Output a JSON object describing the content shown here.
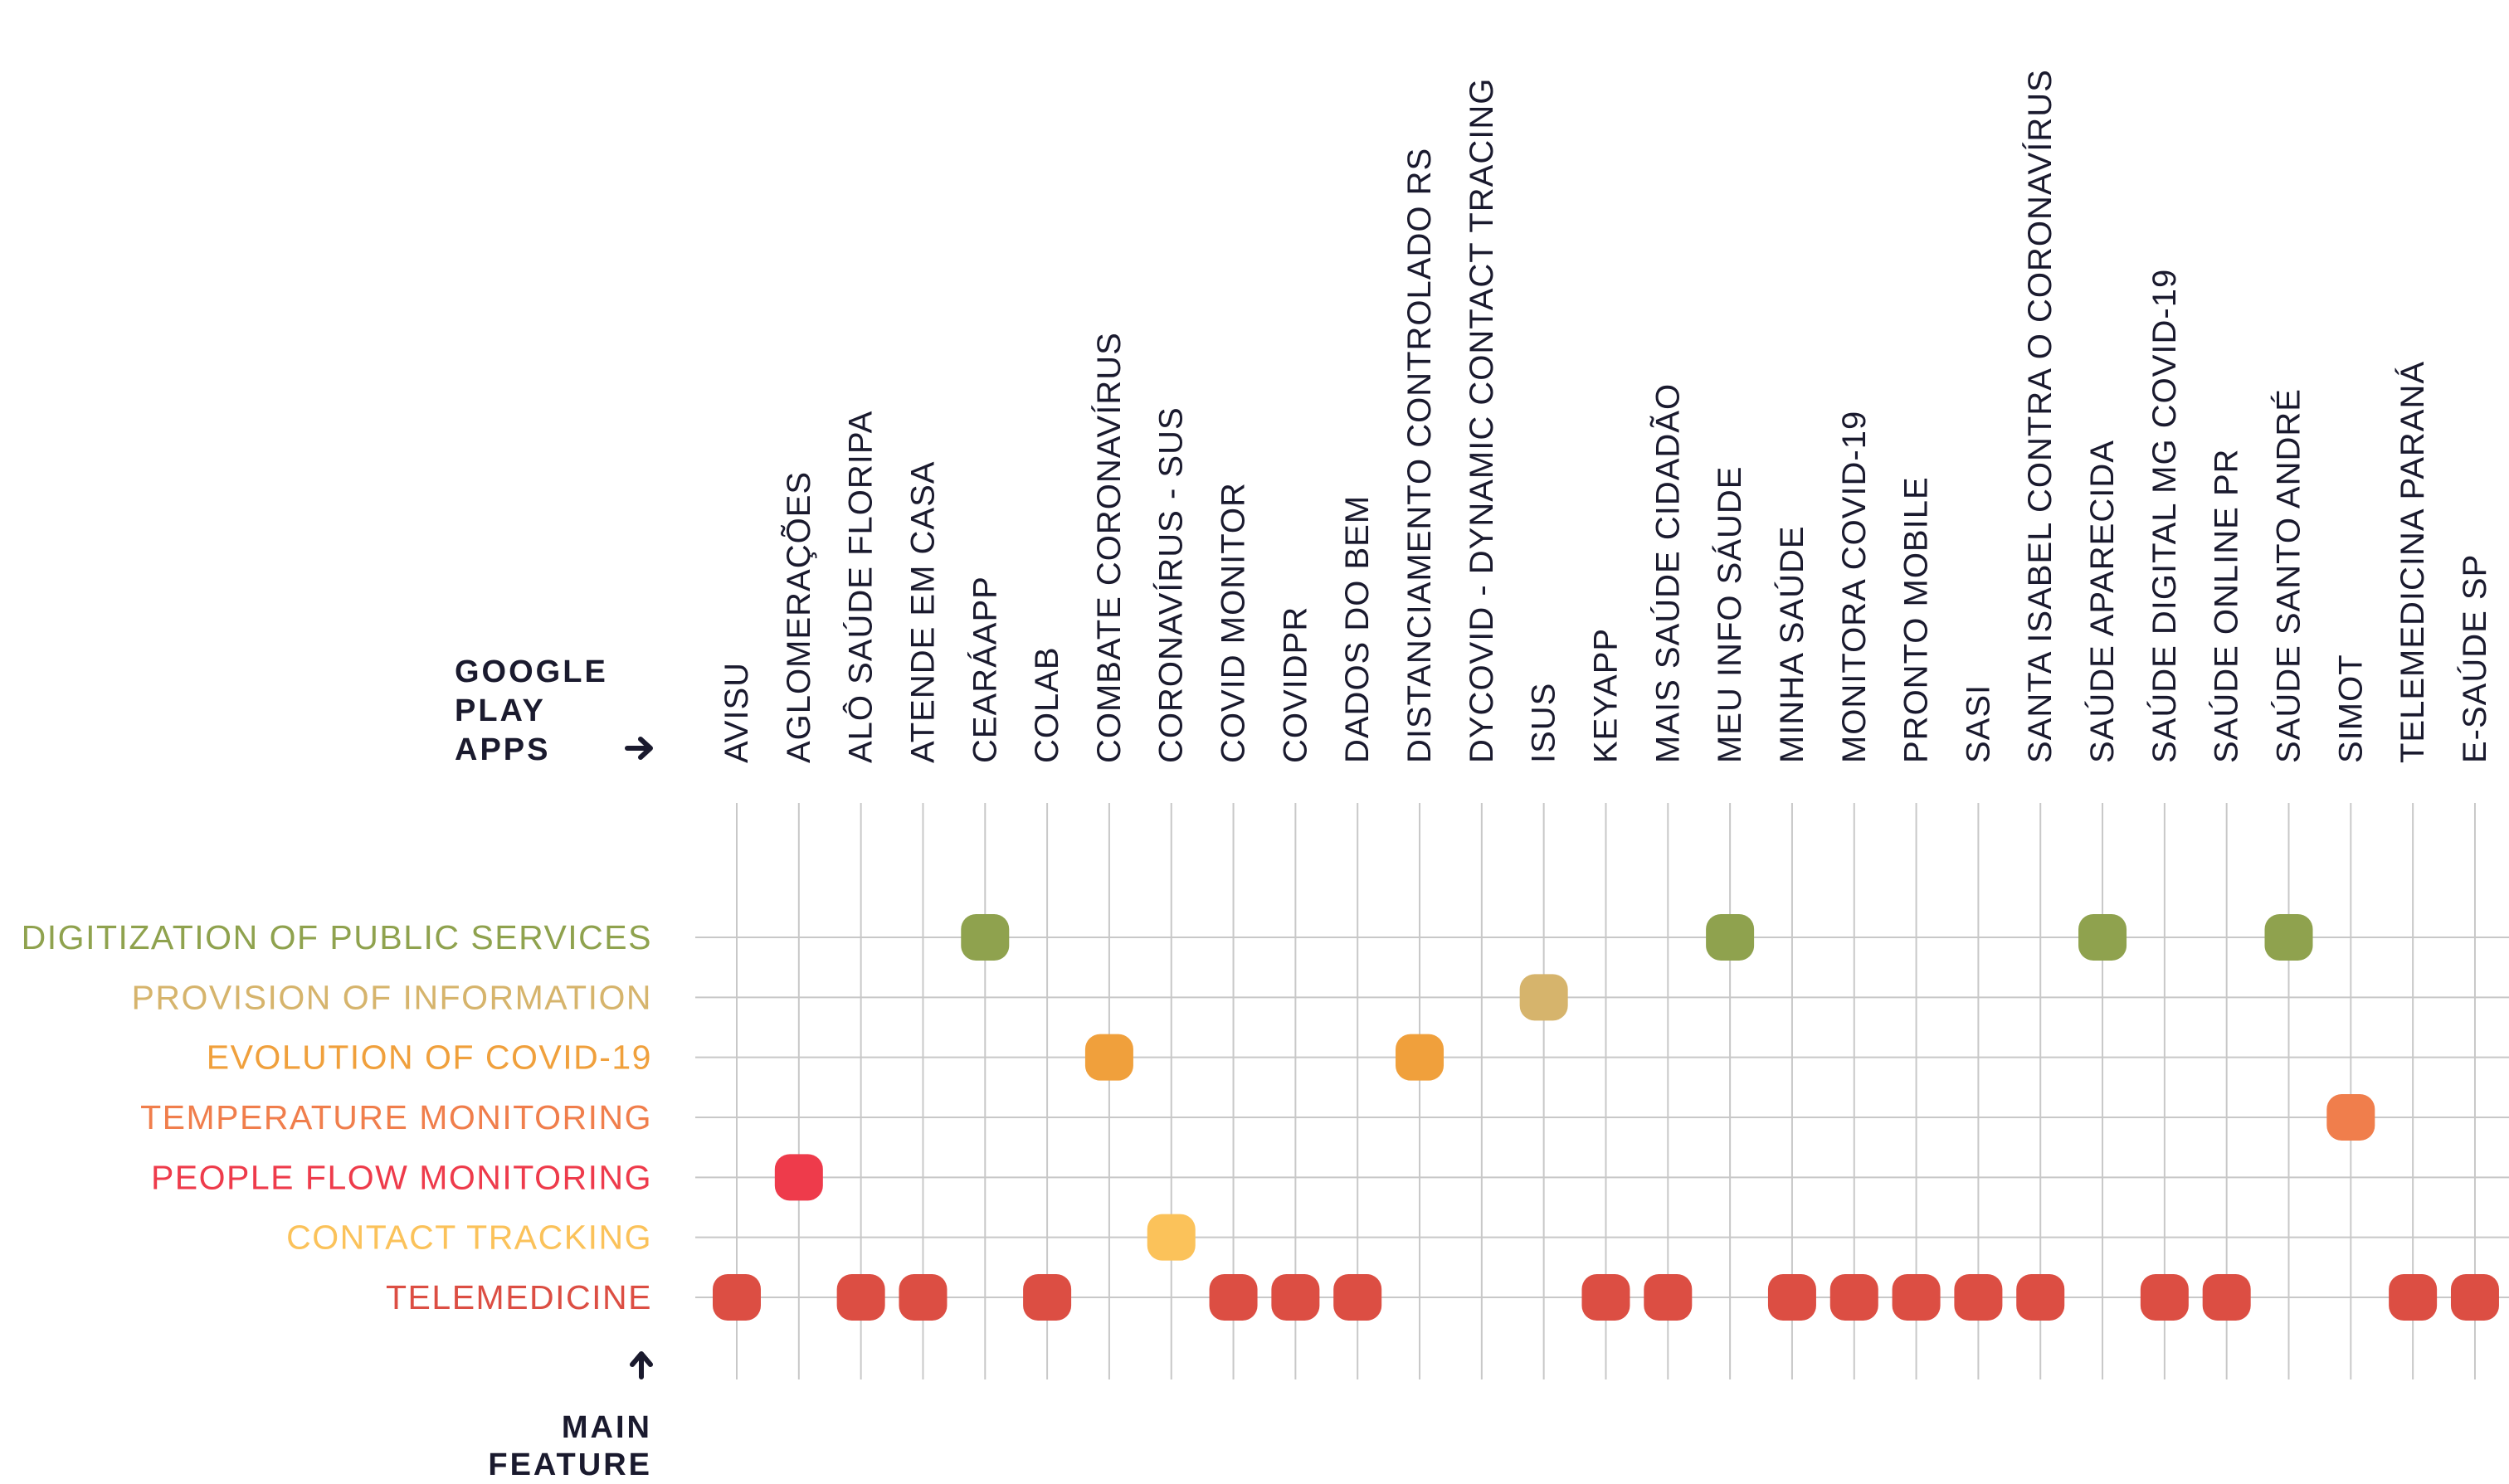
{
  "chart_data": {
    "type": "scatter",
    "x_axis_title": [
      "GOOGLE",
      "PLAY",
      "APPS"
    ],
    "y_axis_title": [
      "MAIN",
      "FEATURE"
    ],
    "apps": [
      "AVISU",
      "AGLOMERAÇÕES",
      "ALÔ SAÚDE FLORIPA",
      "ATENDE EM CASA",
      "CEARÁAPP",
      "COLAB",
      "COMBATE CORONAVÍRUS",
      "CORONAVÍRUS - SUS",
      "COVID MONITOR",
      "COVIDPR",
      "DADOS DO BEM",
      "DISTANCIAMENTO CONTROLADO RS",
      "DYCOVID - DYNAMIC CONTACT TRACING",
      "ISUS",
      "KEYAPP",
      "MAIS SAÚDE CIDADÃO",
      "MEU INFO SÁUDE",
      "MINHA SAÚDE",
      "MONITORA COVID-19",
      "PRONTO MOBILE",
      "SASI",
      "SANTA ISABEL CONTRA O CORONAVÍRUS",
      "SAÚDE APARECIDA",
      "SAÚDE DIGITAL MG COVID-19",
      "SAÚDE ONLINE PR",
      "SAÚDE SANTO ANDRÉ",
      "SIMOT",
      "TELEMEDICINA PARANÁ",
      "E-SAÚDE SP"
    ],
    "features": [
      {
        "label": "DIGITIZATION OF PUBLIC SERVICES",
        "color": "#8fa24e"
      },
      {
        "label": "PROVISION OF INFORMATION",
        "color": "#d6b46c"
      },
      {
        "label": "EVOLUTION OF COVID-19",
        "color": "#f0a03c"
      },
      {
        "label": "TEMPERATURE MONITORING",
        "color": "#f07e4c"
      },
      {
        "label": "PEOPLE FLOW MONITORING",
        "color": "#ee3b4b"
      },
      {
        "label": "CONTACT TRACKING",
        "color": "#fbc25a"
      },
      {
        "label": "TELEMEDICINE",
        "color": "#dc4e43"
      }
    ],
    "points": [
      {
        "app": "AVISU",
        "feature": "TELEMEDICINE"
      },
      {
        "app": "AGLOMERAÇÕES",
        "feature": "PEOPLE FLOW MONITORING"
      },
      {
        "app": "ALÔ SAÚDE FLORIPA",
        "feature": "TELEMEDICINE"
      },
      {
        "app": "ATENDE EM CASA",
        "feature": "TELEMEDICINE"
      },
      {
        "app": "CEARÁAPP",
        "feature": "DIGITIZATION OF PUBLIC SERVICES"
      },
      {
        "app": "COLAB",
        "feature": "TELEMEDICINE"
      },
      {
        "app": "COMBATE CORONAVÍRUS",
        "feature": "EVOLUTION OF COVID-19"
      },
      {
        "app": "CORONAVÍRUS - SUS",
        "feature": "CONTACT TRACKING"
      },
      {
        "app": "COVID MONITOR",
        "feature": "TELEMEDICINE"
      },
      {
        "app": "COVIDPR",
        "feature": "TELEMEDICINE"
      },
      {
        "app": "DADOS DO BEM",
        "feature": "TELEMEDICINE"
      },
      {
        "app": "DISTANCIAMENTO CONTROLADO RS",
        "feature": "EVOLUTION OF COVID-19"
      },
      {
        "app": "ISUS",
        "feature": "PROVISION OF INFORMATION"
      },
      {
        "app": "KEYAPP",
        "feature": "TELEMEDICINE"
      },
      {
        "app": "MAIS SAÚDE CIDADÃO",
        "feature": "TELEMEDICINE"
      },
      {
        "app": "MEU INFO SÁUDE",
        "feature": "DIGITIZATION OF PUBLIC SERVICES"
      },
      {
        "app": "MINHA SAÚDE",
        "feature": "TELEMEDICINE"
      },
      {
        "app": "MONITORA COVID-19",
        "feature": "TELEMEDICINE"
      },
      {
        "app": "PRONTO MOBILE",
        "feature": "TELEMEDICINE"
      },
      {
        "app": "SASI",
        "feature": "TELEMEDICINE"
      },
      {
        "app": "SANTA ISABEL CONTRA O CORONAVÍRUS",
        "feature": "TELEMEDICINE"
      },
      {
        "app": "SAÚDE APARECIDA",
        "feature": "DIGITIZATION OF PUBLIC SERVICES"
      },
      {
        "app": "SAÚDE DIGITAL MG COVID-19",
        "feature": "TELEMEDICINE"
      },
      {
        "app": "SAÚDE ONLINE PR",
        "feature": "TELEMEDICINE"
      },
      {
        "app": "SAÚDE SANTO ANDRÉ",
        "feature": "DIGITIZATION OF PUBLIC SERVICES"
      },
      {
        "app": "SIMOT",
        "feature": "TEMPERATURE MONITORING"
      },
      {
        "app": "TELEMEDICINA PARANÁ",
        "feature": "TELEMEDICINE"
      },
      {
        "app": "E-SAÚDE SP",
        "feature": "TELEMEDICINE"
      }
    ],
    "grid": true,
    "x_arrow_icon": "arrow-right-icon",
    "y_arrow_icon": "arrow-up-icon",
    "text_color": "#1a1a2e",
    "grid_color": "#c8c8c8"
  }
}
